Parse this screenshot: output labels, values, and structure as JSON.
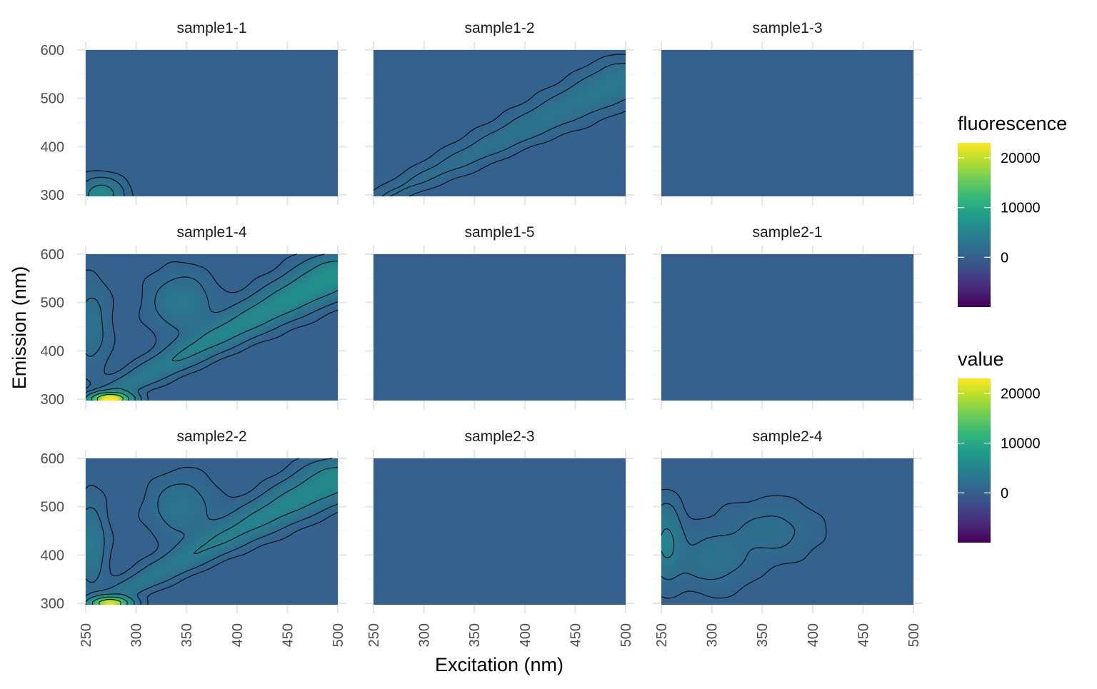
{
  "chart_data": {
    "type": "heatmap",
    "facet_layout": {
      "rows": 3,
      "cols": 3
    },
    "xlabel": "Excitation (nm)",
    "ylabel": "Emission (nm)",
    "xlim": [
      250,
      500
    ],
    "ylim": [
      297,
      600
    ],
    "x_ticks": [
      250,
      300,
      350,
      400,
      450,
      500
    ],
    "y_ticks": [
      300,
      400,
      500,
      600
    ],
    "panels": [
      {
        "name": "sample1-1",
        "blobs": [
          {
            "ex": 265,
            "em": 300,
            "value": 6000,
            "sx": 14,
            "sy": 22
          }
        ]
      },
      {
        "name": "sample1-2",
        "scatter_ridge": {
          "start": [
            255,
            290
          ],
          "end": [
            500,
            540
          ],
          "value": 3500
        }
      },
      {
        "name": "sample1-3",
        "scatter_ridge": null
      },
      {
        "name": "sample1-4",
        "scatter_ridge": {
          "start": [
            265,
            300
          ],
          "end": [
            500,
            560
          ],
          "value": 7000
        },
        "peak": {
          "ex": 275,
          "em": 300,
          "value": 23000
        },
        "blobs": [
          {
            "ex": 345,
            "em": 500,
            "value": 3500,
            "sx": 20,
            "sy": 40
          },
          {
            "ex": 255,
            "em": 450,
            "value": 2500,
            "sx": 12,
            "sy": 60
          }
        ]
      },
      {
        "name": "sample1-5",
        "scatter_ridge": null
      },
      {
        "name": "sample2-1",
        "scatter_ridge": null
      },
      {
        "name": "sample2-2",
        "scatter_ridge": {
          "start": [
            265,
            300
          ],
          "end": [
            500,
            560
          ],
          "value": 6000
        },
        "peak": {
          "ex": 275,
          "em": 300,
          "value": 20000
        },
        "blobs": [
          {
            "ex": 345,
            "em": 500,
            "value": 3000,
            "sx": 20,
            "sy": 40
          },
          {
            "ex": 255,
            "em": 420,
            "value": 3500,
            "sx": 10,
            "sy": 60
          }
        ]
      },
      {
        "name": "sample2-3",
        "scatter_ridge": null
      },
      {
        "name": "sample2-4",
        "scatter_ridge": null,
        "blobs": [
          {
            "ex": 255,
            "em": 430,
            "value": 4500,
            "sx": 10,
            "sy": 50
          },
          {
            "ex": 300,
            "em": 390,
            "value": 2500,
            "sx": 25,
            "sy": 40
          },
          {
            "ex": 360,
            "em": 450,
            "value": 2000,
            "sx": 30,
            "sy": 40
          }
        ]
      }
    ],
    "legends": [
      {
        "title": "fluorescence",
        "ticks": [
          20000,
          10000,
          0
        ],
        "range": [
          -10000,
          23000
        ]
      },
      {
        "title": "value",
        "ticks": [
          20000,
          10000,
          0
        ],
        "range": [
          -10000,
          23000
        ]
      }
    ],
    "colormap": "viridis",
    "grid": true,
    "legend_placement": "right"
  }
}
